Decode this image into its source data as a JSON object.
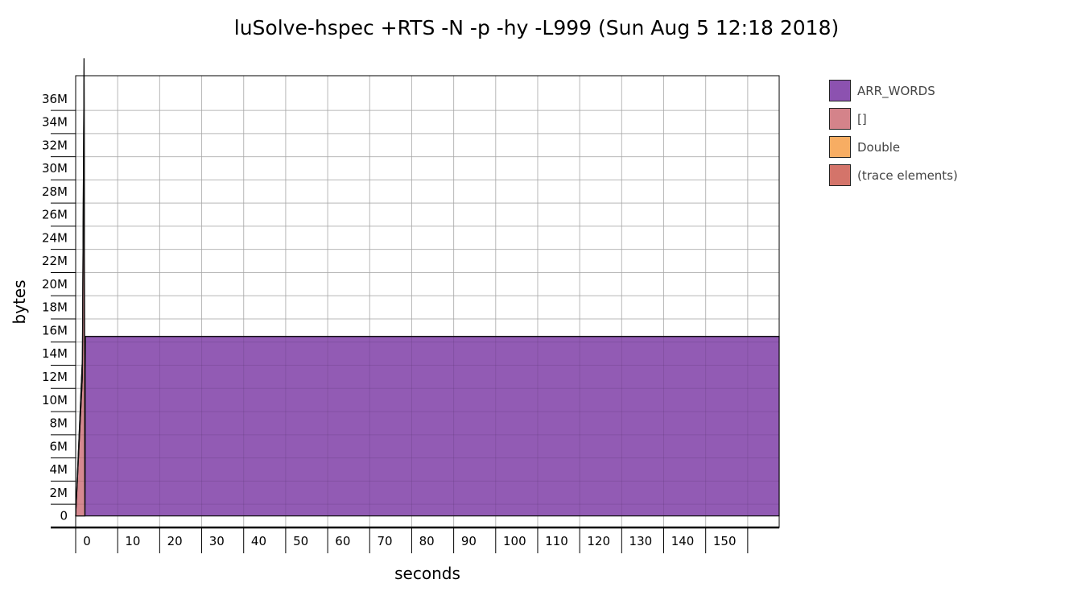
{
  "chart_data": {
    "type": "area",
    "title": "luSolve-hspec +RTS -N -p -hy -L999 (Sun Aug 5 12:18 2018)",
    "xlabel": "seconds",
    "ylabel": "bytes",
    "xlim": [
      -1,
      166.5
    ],
    "ylim": [
      -1000000,
      38000000
    ],
    "x_ticks": [
      0,
      10,
      20,
      30,
      40,
      50,
      60,
      70,
      80,
      90,
      100,
      110,
      120,
      130,
      140,
      150
    ],
    "x_tick_labels": [
      "0",
      "10",
      "20",
      "30",
      "40",
      "50",
      "60",
      "70",
      "80",
      "90",
      "100",
      "110",
      "120",
      "130",
      "140",
      "150"
    ],
    "y_ticks": [
      0,
      2000000,
      4000000,
      6000000,
      8000000,
      10000000,
      12000000,
      14000000,
      16000000,
      18000000,
      20000000,
      22000000,
      24000000,
      26000000,
      28000000,
      30000000,
      32000000,
      34000000,
      36000000
    ],
    "y_tick_labels": [
      "0",
      "2M",
      "4M",
      "6M",
      "8M",
      "10M",
      "12M",
      "14M",
      "16M",
      "18M",
      "20M",
      "22M",
      "24M",
      "26M",
      "28M",
      "30M",
      "32M",
      "34M",
      "36M"
    ],
    "grid": true,
    "legend_position": "right",
    "series": [
      {
        "name": "ARR_WORDS",
        "color": "#8c52b0",
        "x": [
          -1,
          1.2,
          1.3,
          166.5
        ],
        "y": [
          0,
          0,
          15500000,
          15500000
        ]
      },
      {
        "name": "[]",
        "color": "#d4838a",
        "x": [
          -1,
          0.6,
          1.0,
          1.2,
          166.5
        ],
        "y": [
          0,
          12000000,
          38000000,
          0,
          0
        ]
      },
      {
        "name": "Double",
        "color": "#f7ad63",
        "x": [
          -1,
          0.5,
          1.1,
          1.2,
          166.5
        ],
        "y": [
          0,
          1500000,
          1500000,
          0,
          0
        ]
      },
      {
        "name": "(trace elements)",
        "color": "#d4746a",
        "x": [
          -1,
          166.5
        ],
        "y": [
          0,
          0
        ]
      }
    ]
  }
}
